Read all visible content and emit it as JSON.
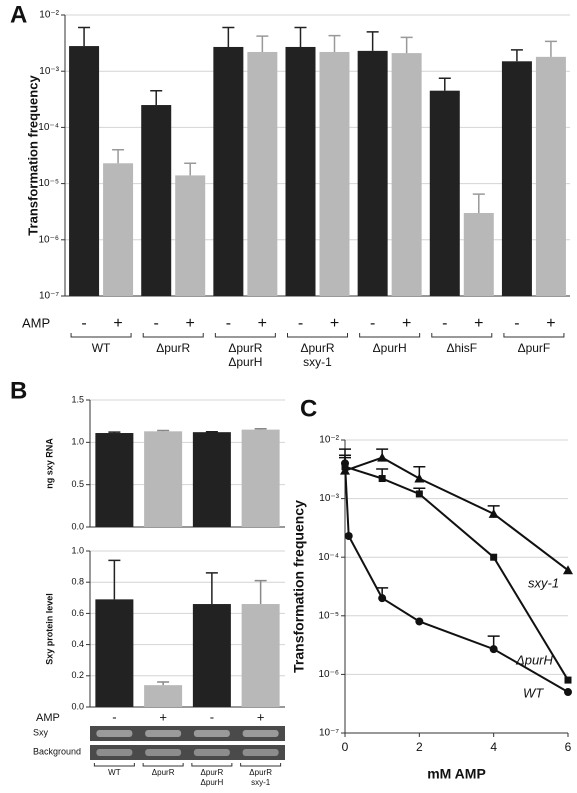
{
  "chart_data": [
    {
      "type": "bar",
      "panel": "A",
      "log_y": true,
      "grid": true,
      "ylabel": "Transformation frequency",
      "amp_label": "AMP",
      "ylim": [
        1e-07,
        0.01
      ],
      "yticks": [
        {
          "value": 1e-07,
          "label": "10⁻⁷"
        },
        {
          "value": 1e-06,
          "label": "10⁻⁶"
        },
        {
          "value": 1e-05,
          "label": "10⁻⁵"
        },
        {
          "value": 0.0001,
          "label": "10⁻⁴"
        },
        {
          "value": 0.001,
          "label": "10⁻³"
        },
        {
          "value": 0.01,
          "label": "10⁻²"
        }
      ],
      "categories": [
        [
          "WT"
        ],
        [
          "ΔpurR"
        ],
        [
          "ΔpurR",
          "ΔpurH"
        ],
        [
          "ΔpurR",
          "sxy-1"
        ],
        [
          "ΔpurH"
        ],
        [
          "ΔhisF"
        ],
        [
          "ΔpurF"
        ]
      ],
      "series": [
        {
          "name": "-",
          "color": "#222222",
          "values": [
            0.0028,
            0.00025,
            0.0027,
            0.0027,
            0.0023,
            0.00045,
            0.0015
          ],
          "errors": [
            0.0032,
            0.0002,
            0.0033,
            0.0033,
            0.0027,
            0.0003,
            0.0009
          ]
        },
        {
          "name": "+",
          "color": "#b8b8b8",
          "values": [
            2.3e-05,
            1.4e-05,
            0.0022,
            0.0022,
            0.0021,
            3e-06,
            0.0018
          ],
          "errors": [
            1.7e-05,
            9e-06,
            0.002,
            0.0021,
            0.0019,
            3.5e-06,
            0.0016
          ]
        }
      ]
    },
    {
      "type": "bar",
      "panel": "B",
      "grid": true,
      "ylabel": "ng sxy RNA",
      "ylim": [
        0,
        1.5
      ],
      "yticks": [
        {
          "value": 0,
          "label": "0.0"
        },
        {
          "value": 0.5,
          "label": "0.5"
        },
        {
          "value": 1,
          "label": "1.0"
        },
        {
          "value": 1.5,
          "label": "1.5"
        }
      ],
      "colors": [
        "#222222",
        "#b8b8b8",
        "#222222",
        "#b8b8b8"
      ],
      "values": [
        1.11,
        1.13,
        1.12,
        1.15
      ],
      "errors": [
        0.01,
        0.01,
        0.005,
        0.01
      ]
    },
    {
      "type": "bar",
      "grid": true,
      "ylabel": "Sxy protein level",
      "ylim": [
        0,
        1
      ],
      "yticks": [
        {
          "value": 0,
          "label": "0.0"
        },
        {
          "value": 0.2,
          "label": "0.2"
        },
        {
          "value": 0.4,
          "label": "0.4"
        },
        {
          "value": 0.6,
          "label": "0.6"
        },
        {
          "value": 0.8,
          "label": "0.8"
        },
        {
          "value": 1,
          "label": "1.0"
        }
      ],
      "colors": [
        "#222222",
        "#b8b8b8",
        "#222222",
        "#b8b8b8"
      ],
      "values": [
        0.69,
        0.14,
        0.66,
        0.66
      ],
      "errors": [
        0.25,
        0.02,
        0.2,
        0.15
      ],
      "amp_label": "AMP",
      "amp_signs": [
        "-",
        "+",
        "-",
        "+"
      ],
      "blot_labels": [
        "Sxy",
        "Background"
      ],
      "categories": [
        [
          "WT"
        ],
        [
          "ΔpurR"
        ],
        [
          "ΔpurR",
          "ΔpurH"
        ],
        [
          "ΔpurR",
          "sxy-1"
        ]
      ]
    },
    {
      "type": "line",
      "panel": "C",
      "log_y": true,
      "grid": true,
      "xlabel": "mM AMP",
      "ylabel": "Transformation frequency",
      "xlim": [
        0,
        6
      ],
      "xticks": [
        0,
        2,
        4,
        6
      ],
      "ylim": [
        1e-07,
        0.01
      ],
      "yticks": [
        {
          "value": 1e-07,
          "label": "10⁻⁷"
        },
        {
          "value": 1e-06,
          "label": "10⁻⁶"
        },
        {
          "value": 1e-05,
          "label": "10⁻⁵"
        },
        {
          "value": 0.0001,
          "label": "10⁻⁴"
        },
        {
          "value": 0.001,
          "label": "10⁻³"
        },
        {
          "value": 0.01,
          "label": "10⁻²"
        }
      ],
      "series": [
        {
          "name": "WT",
          "color": "#111111",
          "marker": "circle",
          "x": [
            0,
            0.1,
            1,
            2,
            4,
            6
          ],
          "y": [
            0.004,
            0.00023,
            2e-05,
            8e-06,
            2.7e-06,
            5e-07
          ],
          "errors": [
            0.003,
            null,
            1e-05,
            null,
            1.8e-06,
            null
          ]
        },
        {
          "name": "ΔpurH",
          "color": "#111111",
          "marker": "square",
          "x": [
            0,
            1,
            2,
            4,
            6
          ],
          "y": [
            0.0035,
            0.0022,
            0.0012,
            0.0001,
            8e-07
          ],
          "errors": [
            0.002,
            0.001,
            0.0003,
            null,
            null
          ]
        },
        {
          "name": "sxy-1",
          "color": "#111111",
          "marker": "triangle",
          "x": [
            0,
            1,
            2,
            4,
            6
          ],
          "y": [
            0.003,
            0.005,
            0.0022,
            0.00055,
            6e-05
          ],
          "errors": [
            0.002,
            0.002,
            0.0013,
            0.0002,
            null
          ]
        }
      ]
    }
  ]
}
